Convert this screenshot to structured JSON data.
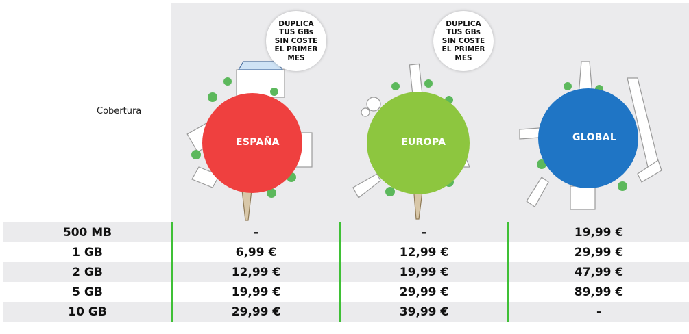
{
  "coverage_label": "Cobertura",
  "zones": [
    {
      "name": "ESPAÑA",
      "color": "#ef403f",
      "badge": null
    },
    {
      "name": "EUROPA",
      "color": "#8dc63f",
      "badge": "DUPLICA\nTUS GBs\nSIN COSTE\nEL PRIMER\nMES"
    },
    {
      "name": "GLOBAL",
      "color": "#1f75c5",
      "badge": null
    }
  ],
  "badge_text": "DUPLICA\nTUS GBs\nSIN COSTE\nEL PRIMER\nMES",
  "rows": [
    {
      "size": "500 MB",
      "espana": "-",
      "europa": "-",
      "global": "19,99 €"
    },
    {
      "size": "1 GB",
      "espana": "6,99 €",
      "europa": "12,99 €",
      "global": "29,99 €"
    },
    {
      "size": "2 GB",
      "espana": "12,99 €",
      "europa": "19,99 €",
      "global": "47,99 €"
    },
    {
      "size": "5 GB",
      "espana": "19,99 €",
      "europa": "29,99 €",
      "global": "89,99 €"
    },
    {
      "size": "10 GB",
      "espana": "29,99 €",
      "europa": "39,99 €",
      "global": "-"
    }
  ],
  "colors": {
    "divider": "#3fc036",
    "row_alt": "#ebebed"
  }
}
